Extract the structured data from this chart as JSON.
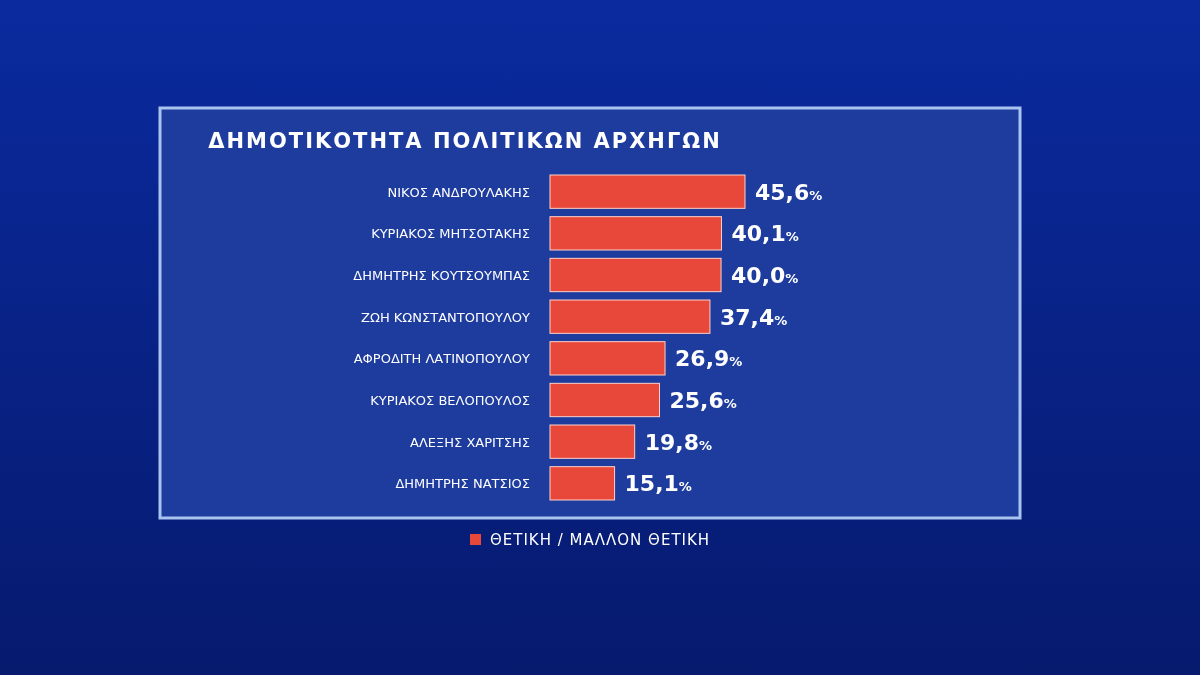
{
  "chart_data": {
    "type": "bar",
    "orientation": "horizontal",
    "title": "ΔΗΜΟΤΙΚΟΤΗΤΑ ΠΟΛΙΤΙΚΩΝ ΑΡΧΗΓΩΝ",
    "categories": [
      "ΝΙΚΟΣ ΑΝΔΡΟΥΛΑΚΗΣ",
      "ΚΥΡΙΑΚΟΣ ΜΗΤΣΟΤΑΚΗΣ",
      "ΔΗΜΗΤΡΗΣ ΚΟΥΤΣΟΥΜΠΑΣ",
      "ΖΩΗ ΚΩΝΣΤΑΝΤΟΠΟΥΛΟΥ",
      "ΑΦΡΟΔΙΤΗ ΛΑΤΙΝΟΠΟΥΛΟΥ",
      "ΚΥΡΙΑΚΟΣ ΒΕΛΟΠΟΥΛΟΣ",
      "ΑΛΕΞΗΣ ΧΑΡΙΤΣΗΣ",
      "ΔΗΜΗΤΡΗΣ ΝΑΤΣΙΟΣ"
    ],
    "series": [
      {
        "name": "ΘΕΤΙΚΗ / ΜΑΛΛΟΝ ΘΕΤΙΚΗ",
        "color": "#e8483a",
        "values": [
          45.6,
          40.1,
          40.0,
          37.4,
          26.9,
          25.6,
          19.8,
          15.1
        ],
        "value_labels": [
          "45,6%",
          "40,1%",
          "40,0%",
          "37,4%",
          "26,9%",
          "25,6%",
          "19,8%",
          "15,1%"
        ]
      }
    ],
    "tick_labels": "y",
    "legend": "bottom"
  }
}
